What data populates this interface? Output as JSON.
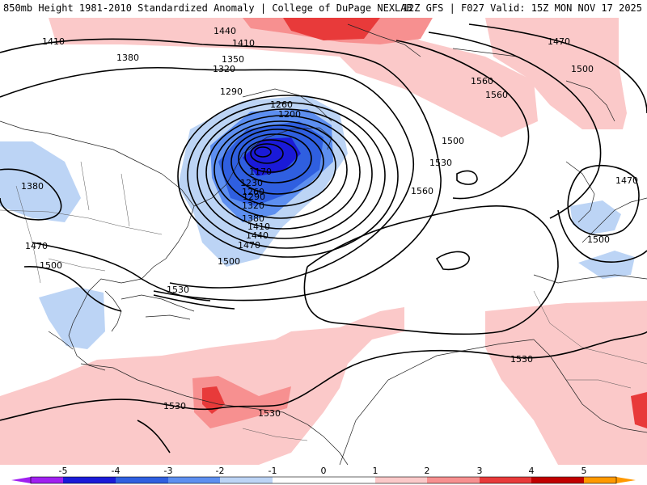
{
  "header": {
    "title_left": "850mb Height 1981-2010 Standardized Anomaly | College of DuPage NEXLAB",
    "title_right": "12Z GFS | F027 Valid: 15Z MON NOV 17 2025"
  },
  "contour_labels": [
    {
      "id": "c1410a",
      "text": "1410"
    },
    {
      "id": "c1440",
      "text": "1440"
    },
    {
      "id": "c1410b",
      "text": "1410"
    },
    {
      "id": "c1380a",
      "text": "1380"
    },
    {
      "id": "c1350",
      "text": "1350"
    },
    {
      "id": "c1320a",
      "text": "1320"
    },
    {
      "id": "c1290a",
      "text": "1290"
    },
    {
      "id": "c1260a",
      "text": "1260"
    },
    {
      "id": "c1200",
      "text": "1200"
    },
    {
      "id": "c1170",
      "text": "1170"
    },
    {
      "id": "c1230",
      "text": "1230"
    },
    {
      "id": "c1260b",
      "text": "1260"
    },
    {
      "id": "c1290b",
      "text": "1290"
    },
    {
      "id": "c1320b",
      "text": "1320"
    },
    {
      "id": "c1380b",
      "text": "1380"
    },
    {
      "id": "c1410c",
      "text": "1410"
    },
    {
      "id": "c1440b",
      "text": "1440"
    },
    {
      "id": "c1470a",
      "text": "1470"
    },
    {
      "id": "c1500a",
      "text": "1500"
    },
    {
      "id": "c1380c",
      "text": "1380"
    },
    {
      "id": "c1470b",
      "text": "1470"
    },
    {
      "id": "c1500b",
      "text": "1500"
    },
    {
      "id": "c1530a",
      "text": "1530"
    },
    {
      "id": "c1500c",
      "text": "1500"
    },
    {
      "id": "c1530b",
      "text": "1530"
    },
    {
      "id": "c1560a",
      "text": "1560"
    },
    {
      "id": "c1560b",
      "text": "1560"
    },
    {
      "id": "c1560c",
      "text": "1560"
    },
    {
      "id": "c1470c",
      "text": "1470"
    },
    {
      "id": "c1500d",
      "text": "1500"
    },
    {
      "id": "c1470d",
      "text": "1470"
    },
    {
      "id": "c1500e",
      "text": "1500"
    },
    {
      "id": "c1530c",
      "text": "1530"
    },
    {
      "id": "c1530d",
      "text": "1530"
    },
    {
      "id": "c1530e",
      "text": "1530"
    }
  ],
  "colorbar": {
    "ticks": [
      "-5",
      "-4",
      "-3",
      "-2",
      "-1",
      "0",
      "1",
      "2",
      "3",
      "4",
      "5"
    ],
    "colors": {
      "neg5": "#a020f0",
      "neg4": "#1a1ad8",
      "neg3": "#2f5fe0",
      "neg2": "#5d8ff0",
      "neg1": "#bcd4f5",
      "zero": "#ffffff",
      "pos1": "#fbc9c9",
      "pos2": "#f79090",
      "pos3": "#e83a3a",
      "pos4": "#c00000",
      "pos5": "#ff9900"
    }
  }
}
